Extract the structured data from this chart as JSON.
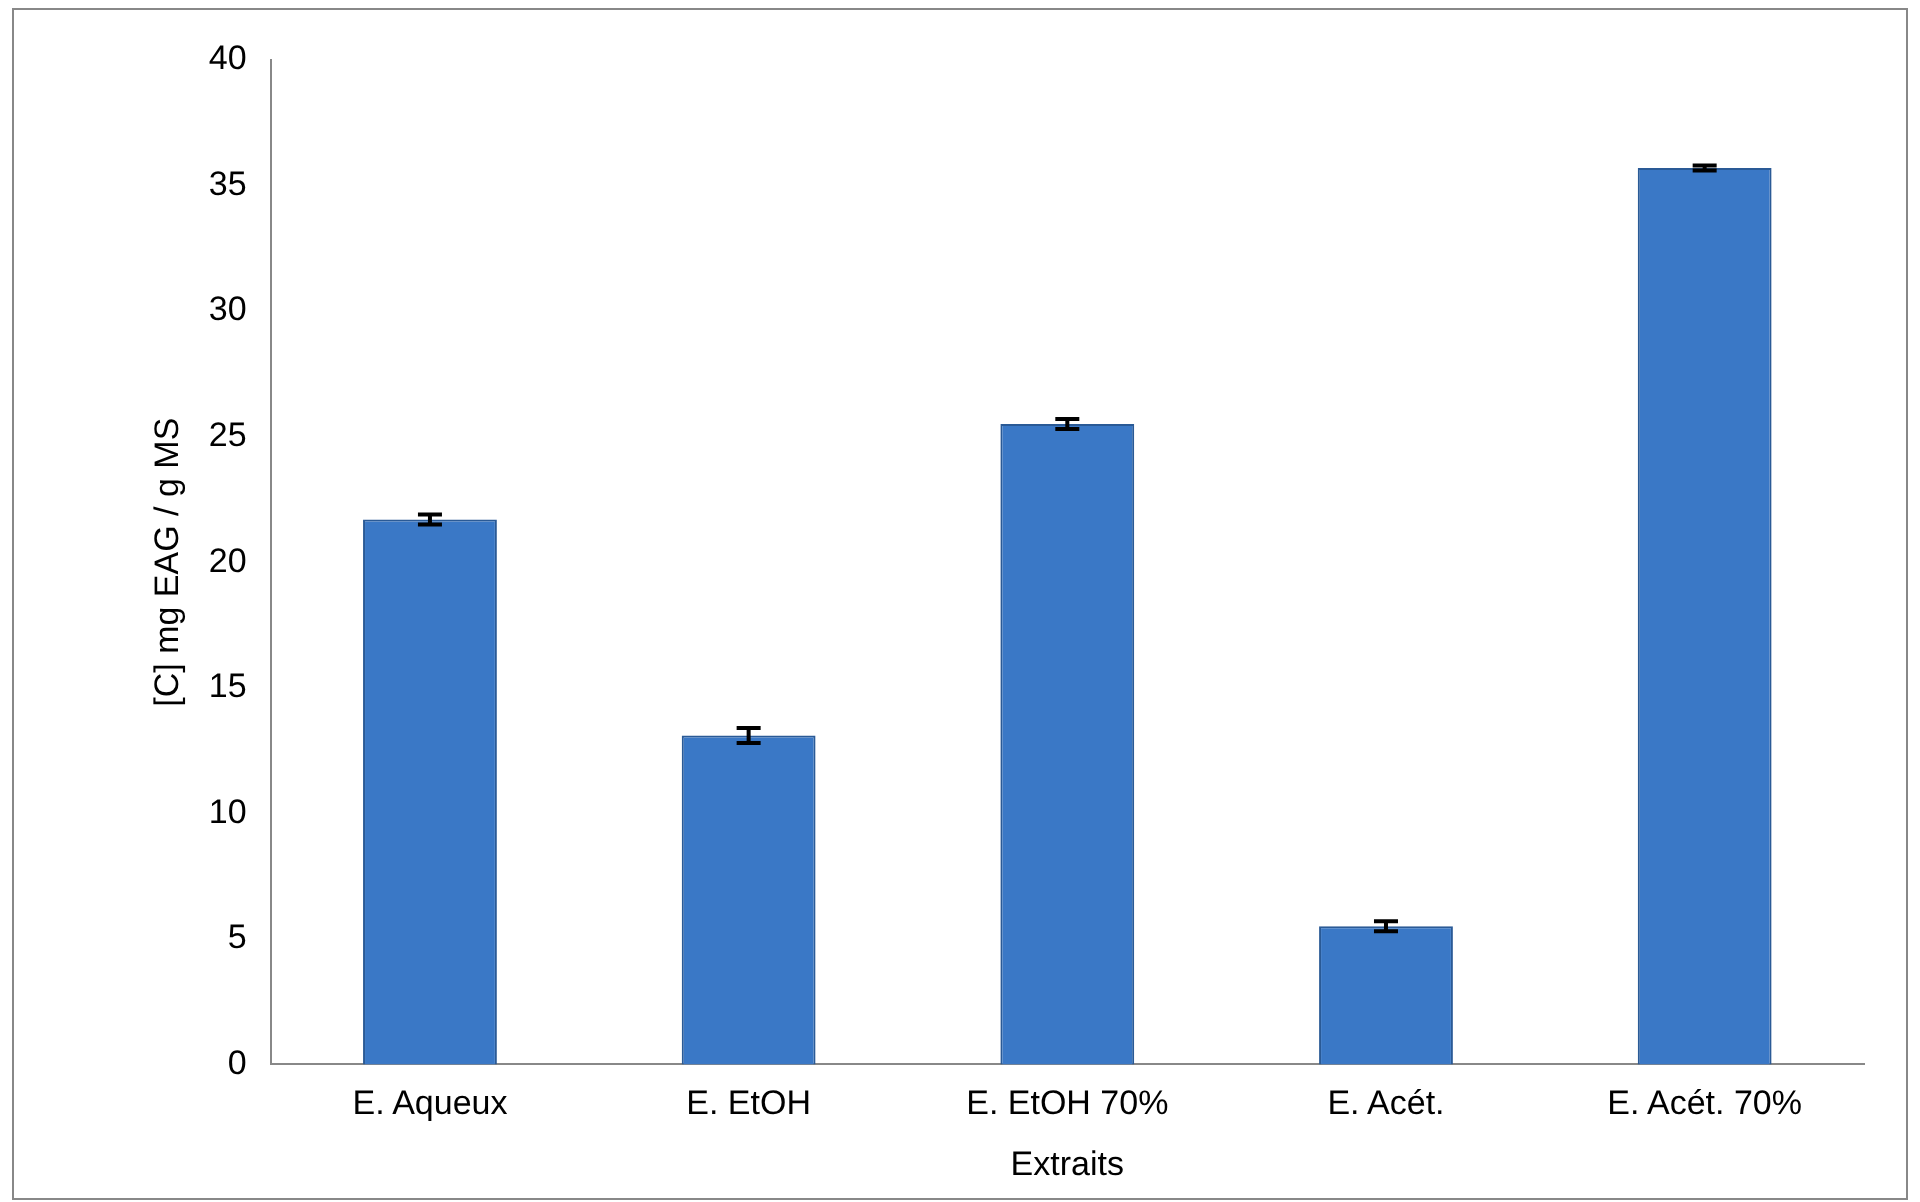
{
  "chart_data": {
    "type": "bar",
    "xlabel": "Extraits",
    "ylabel": "[C] mg EAG / g MS",
    "categories": [
      "E. Aqueux",
      "E. EtOH",
      "E. EtOH 70%",
      "E. Acét.",
      "E. Acét. 70%"
    ],
    "values": [
      21.7,
      13.1,
      25.5,
      5.5,
      35.7
    ],
    "errors": [
      0.2,
      0.3,
      0.2,
      0.2,
      0.1
    ],
    "color": "#3a78c6",
    "ylim": [
      0,
      40
    ],
    "yticks": [
      0,
      5,
      10,
      15,
      20,
      25,
      30,
      35,
      40
    ],
    "grid": false,
    "legend": false
  }
}
